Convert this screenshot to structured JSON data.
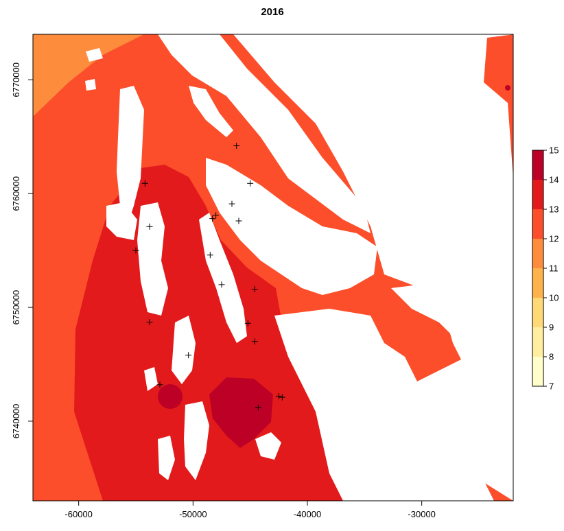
{
  "chart_data": {
    "type": "heatmap",
    "title": "2016",
    "xlabel": "",
    "ylabel": "",
    "xlim": [
      -64000,
      -22000
    ],
    "ylim": [
      6733000,
      6774000
    ],
    "x_ticks": [
      -60000,
      -50000,
      -40000,
      -30000
    ],
    "x_tick_labels": [
      "-60000",
      "-50000",
      "-40000",
      "-30000"
    ],
    "y_ticks": [
      6740000,
      6750000,
      6760000,
      6770000
    ],
    "y_tick_labels": [
      "6740000",
      "6750000",
      "6760000",
      "6770000"
    ],
    "grid": false,
    "legend": {
      "placement": "right",
      "min": 7,
      "max": 15,
      "ticks": [
        7,
        8,
        9,
        10,
        11,
        12,
        13,
        14,
        15
      ],
      "tick_labels": [
        "7",
        "8",
        "9",
        "10",
        "11",
        "12",
        "13",
        "14",
        "15"
      ],
      "colors": [
        "#ffffcc",
        "#ffeda0",
        "#fed976",
        "#feb24c",
        "#fd8d3c",
        "#fc4e2a",
        "#e31a1c",
        "#bd0026"
      ]
    },
    "zone_colors": {
      "v11": "#fd8d3c",
      "v12": "#fc4e2a",
      "v13": "#fc4e2a",
      "v14": "#e31a1c",
      "v15": "#bd0026"
    },
    "stations": [
      {
        "x": -46200,
        "y": 6764200
      },
      {
        "x": -45000,
        "y": 6760900
      },
      {
        "x": -46600,
        "y": 6759100
      },
      {
        "x": -48000,
        "y": 6758100
      },
      {
        "x": -48300,
        "y": 6757800
      },
      {
        "x": -46000,
        "y": 6757600
      },
      {
        "x": -54200,
        "y": 6760900
      },
      {
        "x": -53800,
        "y": 6757100
      },
      {
        "x": -55000,
        "y": 6755000
      },
      {
        "x": -48500,
        "y": 6754600
      },
      {
        "x": -47500,
        "y": 6752000
      },
      {
        "x": -44600,
        "y": 6751600
      },
      {
        "x": -53800,
        "y": 6748700
      },
      {
        "x": -45200,
        "y": 6748600
      },
      {
        "x": -44600,
        "y": 6747000
      },
      {
        "x": -50400,
        "y": 6745800
      },
      {
        "x": -52900,
        "y": 6743200
      },
      {
        "x": -42500,
        "y": 6742200
      },
      {
        "x": -42200,
        "y": 6742100
      },
      {
        "x": -44300,
        "y": 6741200
      }
    ]
  }
}
